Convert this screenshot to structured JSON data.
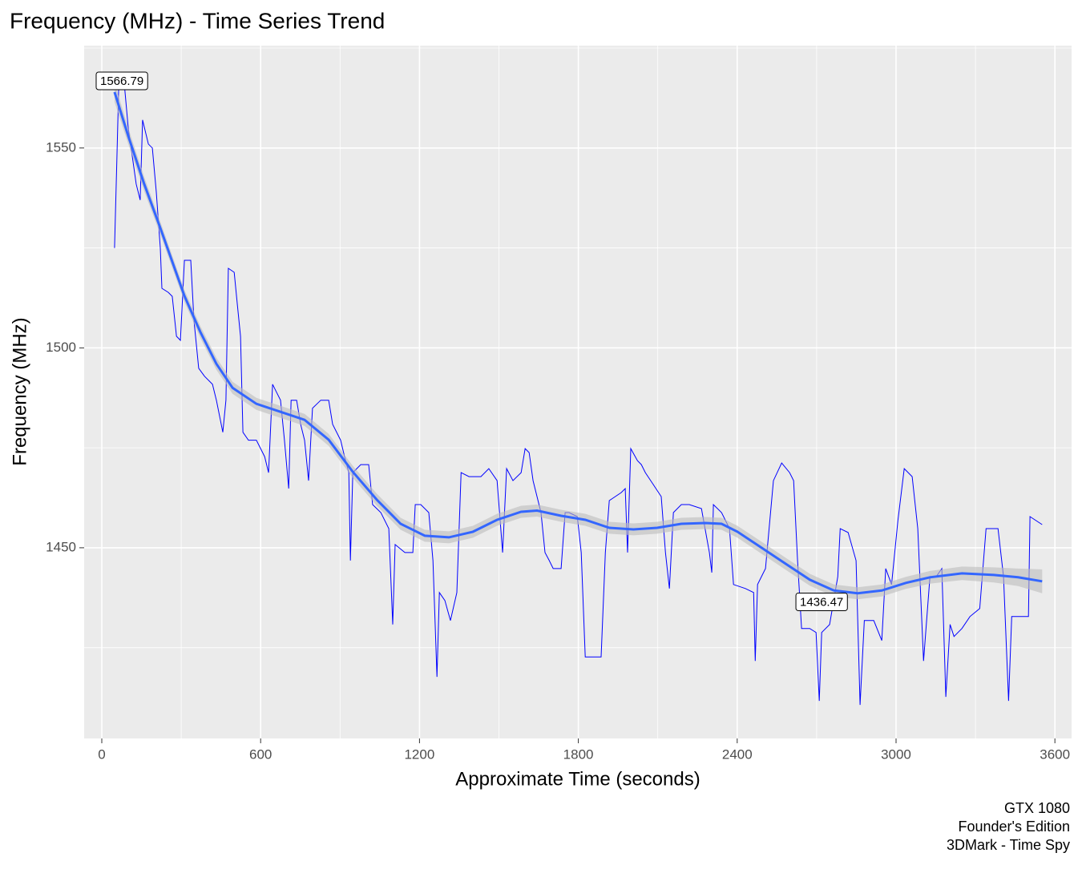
{
  "chart_data": {
    "type": "line",
    "title": "Frequency (MHz) - Time Series Trend",
    "x_label": "Approximate Time (seconds)",
    "y_label": "Frequency (MHz)",
    "caption": [
      "GTX 1080",
      "Founder's Edition",
      "3DMark - Time Spy"
    ],
    "xlim": [
      -66.6,
      3663
    ],
    "ylim": [
      1402.3,
      1575.6
    ],
    "xticks": [
      0,
      600,
      1200,
      1800,
      2400,
      3000,
      3600
    ],
    "yticks": [
      1450,
      1500,
      1550
    ],
    "grid": true,
    "minor_grid": true,
    "series": [
      {
        "color": "#0000ff",
        "x": [
          48,
          57,
          64,
          76,
          85,
          100,
          115,
          130,
          145,
          154,
          176,
          191,
          206,
          221,
          227,
          251,
          266,
          282,
          297,
          312,
          336,
          348,
          366,
          388,
          418,
          433,
          457,
          469,
          478,
          500,
          512,
          524,
          533,
          554,
          584,
          615,
          630,
          645,
          660,
          675,
          690,
          706,
          715,
          736,
          751,
          766,
          781,
          796,
          827,
          857,
          872,
          902,
          917,
          933,
          939,
          948,
          978,
          1008,
          1023,
          1054,
          1084,
          1099,
          1108,
          1145,
          1175,
          1184,
          1205,
          1235,
          1251,
          1266,
          1275,
          1296,
          1317,
          1341,
          1357,
          1387,
          1432,
          1462,
          1493,
          1514,
          1529,
          1553,
          1584,
          1599,
          1614,
          1629,
          1659,
          1674,
          1690,
          1705,
          1735,
          1750,
          1765,
          1796,
          1811,
          1826,
          1856,
          1886,
          1902,
          1917,
          1962,
          1977,
          1986,
          1998,
          2023,
          2038,
          2053,
          2083,
          2113,
          2129,
          2144,
          2159,
          2189,
          2219,
          2265,
          2295,
          2304,
          2310,
          2341,
          2371,
          2386,
          2431,
          2462,
          2468,
          2477,
          2507,
          2537,
          2568,
          2598,
          2613,
          2628,
          2643,
          2674,
          2698,
          2710,
          2719,
          2749,
          2780,
          2789,
          2819,
          2849,
          2864,
          2880,
          2916,
          2946,
          2961,
          2983,
          3007,
          3031,
          3061,
          3082,
          3104,
          3128,
          3152,
          3173,
          3188,
          3204,
          3219,
          3249,
          3279,
          3316,
          3340,
          3385,
          3406,
          3425,
          3437,
          3476,
          3500,
          3506,
          3552
        ],
        "values": [
          1525,
          1547,
          1565,
          1566.79,
          1566,
          1555,
          1548,
          1541,
          1537,
          1557,
          1551,
          1550,
          1539,
          1525,
          1514.9,
          1513.9,
          1512.9,
          1502.9,
          1501.9,
          1521.9,
          1521.9,
          1506.9,
          1494.9,
          1492.9,
          1490.9,
          1486.9,
          1478.9,
          1486.9,
          1519.9,
          1518.9,
          1510.9,
          1502.9,
          1478.9,
          1476.9,
          1476.9,
          1472.8,
          1468.8,
          1490.9,
          1488.9,
          1486.9,
          1476.9,
          1464.8,
          1486.9,
          1486.9,
          1480.9,
          1476.9,
          1466.8,
          1484.9,
          1486.9,
          1486.9,
          1480.9,
          1476.9,
          1472.8,
          1468.8,
          1446.8,
          1468.8,
          1470.8,
          1470.8,
          1460.8,
          1458.8,
          1454.8,
          1430.8,
          1450.8,
          1448.8,
          1448.8,
          1460.8,
          1460.8,
          1458.8,
          1446.8,
          1417.7,
          1438.8,
          1436.8,
          1431.8,
          1438.8,
          1468.8,
          1467.8,
          1467.8,
          1469.8,
          1466.8,
          1448.8,
          1469.8,
          1466.8,
          1468.8,
          1474.8,
          1473.8,
          1466.8,
          1458.8,
          1448.8,
          1446.8,
          1444.8,
          1444.8,
          1458.8,
          1458.8,
          1457.8,
          1448.8,
          1422.7,
          1422.7,
          1422.7,
          1448.8,
          1461.8,
          1463.8,
          1464.8,
          1448.8,
          1474.8,
          1471.8,
          1470.8,
          1468.8,
          1465.8,
          1462.8,
          1448.8,
          1439.8,
          1458.8,
          1460.8,
          1460.8,
          1459.8,
          1448.8,
          1443.8,
          1460.8,
          1458.8,
          1454.8,
          1440.8,
          1439.8,
          1438.8,
          1421.7,
          1440.8,
          1444.8,
          1466.8,
          1471.2,
          1468.8,
          1466.8,
          1446.8,
          1429.8,
          1429.8,
          1428.8,
          1411.7,
          1428.8,
          1430.8,
          1442.8,
          1454.8,
          1453.8,
          1446.8,
          1410.7,
          1431.8,
          1431.8,
          1426.8,
          1444.8,
          1440.8,
          1456.8,
          1469.8,
          1467.8,
          1454.8,
          1421.7,
          1442.8,
          1442.8,
          1444.8,
          1412.7,
          1430.8,
          1427.8,
          1429.8,
          1432.8,
          1434.8,
          1454.8,
          1454.8,
          1442.8,
          1411.7,
          1432.8,
          1432.8,
          1432.8,
          1457.8,
          1455.8
        ]
      }
    ],
    "smooth": {
      "color": "#3366ff",
      "band_color": "#bdbdbd",
      "x": [
        48,
        100,
        160,
        221,
        312,
        372,
        433,
        494,
        584,
        675,
        766,
        857,
        948,
        1039,
        1129,
        1220,
        1311,
        1402,
        1493,
        1584,
        1644,
        1735,
        1826,
        1917,
        2008,
        2098,
        2189,
        2280,
        2341,
        2401,
        2492,
        2583,
        2674,
        2765,
        2855,
        2946,
        3037,
        3128,
        3249,
        3370,
        3461,
        3552
      ],
      "values": [
        1564,
        1553,
        1541,
        1530,
        1513,
        1504,
        1496,
        1490,
        1486,
        1484,
        1482,
        1477,
        1469,
        1462,
        1456,
        1453,
        1452.6,
        1454,
        1457,
        1459,
        1459.3,
        1458,
        1457,
        1455,
        1454.6,
        1455,
        1456,
        1456.2,
        1456,
        1454,
        1450,
        1446,
        1442,
        1439.3,
        1438.6,
        1439.3,
        1441.2,
        1442.6,
        1443.6,
        1443.2,
        1442.6,
        1441.6
      ],
      "se": [
        2.5,
        2,
        1.8,
        1.6,
        1.5,
        1.5,
        1.5,
        1.5,
        1.5,
        1.5,
        1.5,
        1.5,
        1.5,
        1.5,
        1.5,
        1.5,
        1.5,
        1.5,
        1.5,
        1.5,
        1.5,
        1.5,
        1.5,
        1.5,
        1.5,
        1.5,
        1.5,
        1.5,
        1.5,
        1.5,
        1.5,
        1.5,
        1.5,
        1.5,
        1.5,
        1.5,
        1.5,
        1.6,
        1.7,
        1.9,
        2.2,
        3
      ]
    },
    "annotations": [
      {
        "x": 76,
        "y": 1566.79
      },
      {
        "x": 2719,
        "y": 1436.47
      }
    ]
  }
}
